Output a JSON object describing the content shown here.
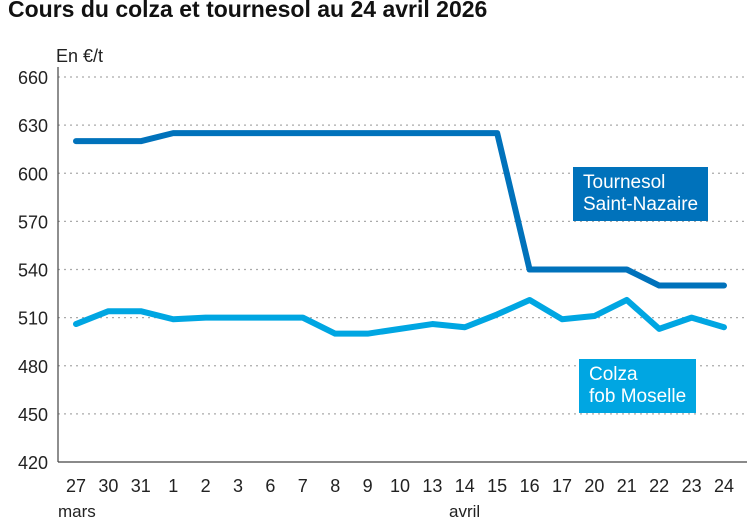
{
  "chart_data": {
    "type": "line",
    "title": "Cours du colza et tournesol au 24 avril 2026",
    "ylabel": "En €/t",
    "ylim": [
      420,
      660
    ],
    "yticks": [
      420,
      450,
      480,
      510,
      540,
      570,
      600,
      630,
      660
    ],
    "categories": [
      "27",
      "30",
      "31",
      "1",
      "2",
      "3",
      "6",
      "7",
      "8",
      "9",
      "10",
      "13",
      "14",
      "15",
      "16",
      "17",
      "20",
      "21",
      "22",
      "23",
      "24"
    ],
    "category_groups": [
      "mars",
      "avril"
    ],
    "grid": true,
    "series": [
      {
        "name": "Tournesol Saint-Nazaire",
        "name_lines": [
          "Tournesol",
          "Saint-Nazaire"
        ],
        "color": "#0072bb",
        "values": [
          620,
          620,
          620,
          625,
          625,
          625,
          625,
          625,
          625,
          625,
          625,
          625,
          625,
          625,
          540,
          540,
          540,
          540,
          530,
          530,
          530
        ]
      },
      {
        "name": "Colza fob Moselle",
        "name_lines": [
          "Colza",
          "fob Moselle"
        ],
        "color": "#00a6e2",
        "values": [
          506,
          514,
          514,
          509,
          510,
          510,
          510,
          510,
          500,
          500,
          503,
          506,
          504,
          512,
          521,
          509,
          511,
          521,
          503,
          510,
          504
        ]
      }
    ]
  }
}
